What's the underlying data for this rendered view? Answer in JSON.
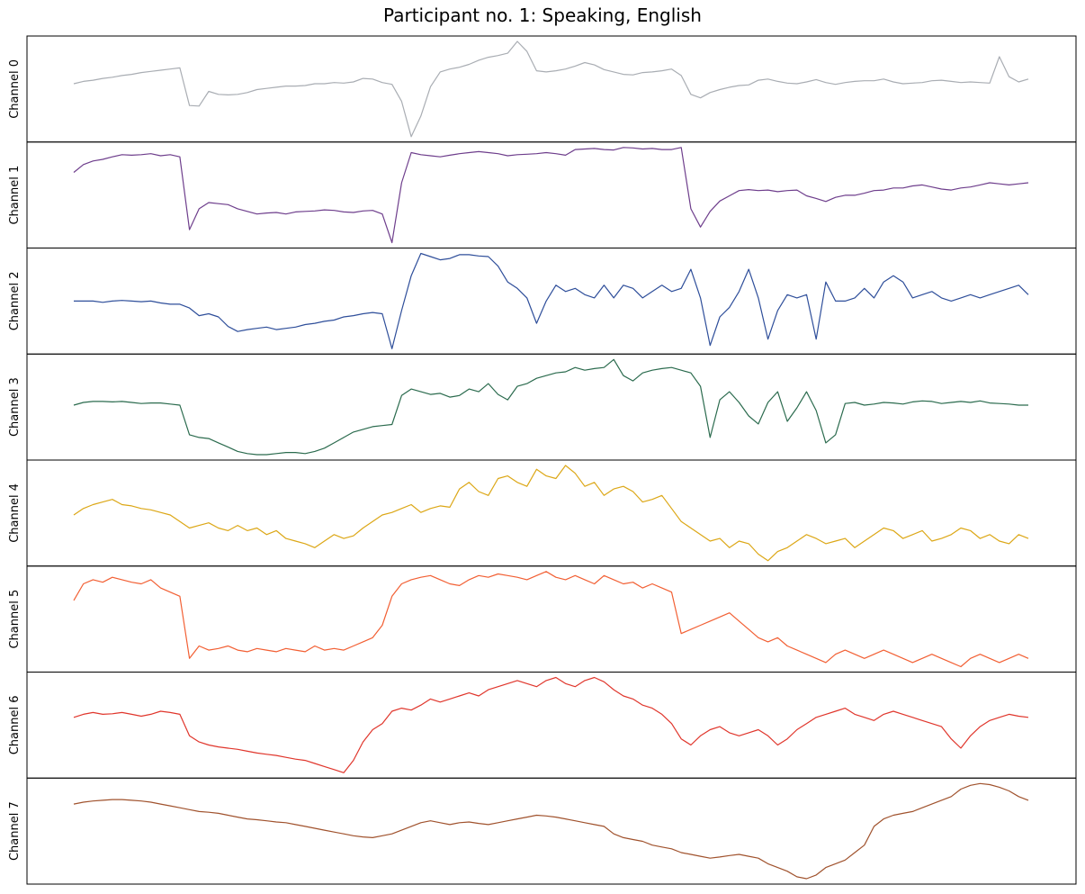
{
  "title": "Participant no. 1: Speaking, English",
  "chart_data": {
    "type": "line",
    "title": "Participant no. 1: Speaking, English",
    "xlabel": "",
    "ylabel": "",
    "x_ticks_shown": false,
    "y_ticks_shown": false,
    "grid": false,
    "legend": "none",
    "layout": "stacked-subplots",
    "series": [
      {
        "name": "Channel 0",
        "color": "#a9adb3",
        "values": [
          0.0,
          0.04,
          0.06,
          0.09,
          0.11,
          0.14,
          0.16,
          0.19,
          0.21,
          0.23,
          0.25,
          0.27,
          -0.37,
          -0.38,
          -0.13,
          -0.18,
          -0.19,
          -0.18,
          -0.15,
          -0.1,
          -0.08,
          -0.06,
          -0.04,
          -0.04,
          -0.03,
          0.0,
          0.0,
          0.02,
          0.01,
          0.03,
          0.09,
          0.08,
          0.02,
          -0.01,
          -0.3,
          -0.9,
          -0.55,
          -0.05,
          0.2,
          0.25,
          0.28,
          0.33,
          0.4,
          0.45,
          0.48,
          0.52,
          0.72,
          0.55,
          0.22,
          0.2,
          0.22,
          0.25,
          0.3,
          0.36,
          0.32,
          0.24,
          0.2,
          0.16,
          0.15,
          0.19,
          0.2,
          0.22,
          0.25,
          0.14,
          -0.18,
          -0.24,
          -0.15,
          -0.1,
          -0.06,
          -0.03,
          -0.02,
          0.06,
          0.08,
          0.04,
          0.01,
          0.0,
          0.03,
          0.07,
          0.02,
          -0.01,
          0.02,
          0.04,
          0.05,
          0.05,
          0.08,
          0.03,
          0.0,
          0.01,
          0.02,
          0.05,
          0.06,
          0.04,
          0.02,
          0.03,
          0.02,
          0.01,
          0.46,
          0.12,
          0.03,
          0.08
        ]
      },
      {
        "name": "Channel 1",
        "color": "#6e3e8c",
        "values": [
          0.4,
          0.55,
          0.62,
          0.65,
          0.7,
          0.74,
          0.73,
          0.74,
          0.76,
          0.72,
          0.74,
          0.7,
          -0.7,
          -0.3,
          -0.18,
          -0.2,
          -0.22,
          -0.3,
          -0.35,
          -0.4,
          -0.38,
          -0.37,
          -0.4,
          -0.36,
          -0.35,
          -0.34,
          -0.32,
          -0.33,
          -0.36,
          -0.37,
          -0.34,
          -0.33,
          -0.4,
          -0.95,
          0.2,
          0.78,
          0.74,
          0.72,
          0.7,
          0.73,
          0.76,
          0.78,
          0.8,
          0.78,
          0.76,
          0.72,
          0.74,
          0.75,
          0.76,
          0.78,
          0.76,
          0.73,
          0.84,
          0.85,
          0.86,
          0.84,
          0.83,
          0.88,
          0.87,
          0.85,
          0.86,
          0.84,
          0.84,
          0.88,
          -0.3,
          -0.65,
          -0.35,
          -0.15,
          -0.05,
          0.05,
          0.07,
          0.05,
          0.06,
          0.03,
          0.05,
          0.06,
          -0.05,
          -0.1,
          -0.16,
          -0.08,
          -0.04,
          -0.04,
          0.0,
          0.05,
          0.06,
          0.1,
          0.1,
          0.14,
          0.16,
          0.12,
          0.08,
          0.06,
          0.1,
          0.12,
          0.16,
          0.2,
          0.18,
          0.16,
          0.18,
          0.2
        ]
      },
      {
        "name": "Channel 2",
        "color": "#2e4e9a",
        "values": [
          0.05,
          0.05,
          0.05,
          0.03,
          0.05,
          0.06,
          0.05,
          0.04,
          0.05,
          0.02,
          0.0,
          0.0,
          -0.06,
          -0.18,
          -0.15,
          -0.2,
          -0.35,
          -0.43,
          -0.4,
          -0.38,
          -0.36,
          -0.4,
          -0.38,
          -0.36,
          -0.32,
          -0.3,
          -0.27,
          -0.25,
          -0.2,
          -0.18,
          -0.15,
          -0.13,
          -0.15,
          -0.7,
          -0.1,
          0.45,
          0.8,
          0.75,
          0.7,
          0.72,
          0.78,
          0.78,
          0.76,
          0.75,
          0.6,
          0.35,
          0.25,
          0.1,
          -0.3,
          0.05,
          0.3,
          0.2,
          0.25,
          0.15,
          0.1,
          0.3,
          0.1,
          0.3,
          0.25,
          0.1,
          0.2,
          0.3,
          0.2,
          0.25,
          0.55,
          0.1,
          -0.65,
          -0.2,
          -0.05,
          0.2,
          0.55,
          0.1,
          -0.55,
          -0.1,
          0.15,
          0.1,
          0.15,
          -0.55,
          0.35,
          0.05,
          0.05,
          0.1,
          0.25,
          0.1,
          0.35,
          0.45,
          0.35,
          0.1,
          0.15,
          0.2,
          0.1,
          0.05,
          0.1,
          0.15,
          0.1,
          0.15,
          0.2,
          0.25,
          0.3,
          0.15
        ]
      },
      {
        "name": "Channel 3",
        "color": "#2b6b4e",
        "values": [
          0.0,
          0.05,
          0.07,
          0.07,
          0.06,
          0.07,
          0.05,
          0.03,
          0.04,
          0.04,
          0.02,
          0.0,
          -0.55,
          -0.6,
          -0.62,
          -0.7,
          -0.78,
          -0.86,
          -0.9,
          -0.92,
          -0.92,
          -0.9,
          -0.88,
          -0.88,
          -0.9,
          -0.86,
          -0.8,
          -0.7,
          -0.6,
          -0.5,
          -0.45,
          -0.4,
          -0.38,
          -0.36,
          0.18,
          0.3,
          0.25,
          0.2,
          0.22,
          0.15,
          0.18,
          0.3,
          0.25,
          0.4,
          0.2,
          0.1,
          0.35,
          0.4,
          0.5,
          0.55,
          0.6,
          0.62,
          0.7,
          0.65,
          0.68,
          0.7,
          0.85,
          0.55,
          0.45,
          0.6,
          0.65,
          0.68,
          0.7,
          0.65,
          0.6,
          0.35,
          -0.6,
          0.1,
          0.25,
          0.05,
          -0.2,
          -0.35,
          0.05,
          0.25,
          -0.3,
          -0.05,
          0.25,
          -0.1,
          -0.7,
          -0.55,
          0.03,
          0.05,
          0.0,
          0.02,
          0.05,
          0.04,
          0.02,
          0.06,
          0.08,
          0.07,
          0.03,
          0.05,
          0.07,
          0.05,
          0.08,
          0.04,
          0.03,
          0.02,
          0.0,
          0.0
        ]
      },
      {
        "name": "Channel 4",
        "color": "#dca716",
        "values": [
          0.0,
          0.05,
          0.08,
          0.1,
          0.12,
          0.08,
          0.07,
          0.05,
          0.04,
          0.02,
          0.0,
          -0.05,
          -0.1,
          -0.08,
          -0.06,
          -0.1,
          -0.12,
          -0.08,
          -0.12,
          -0.1,
          -0.15,
          -0.12,
          -0.18,
          -0.2,
          -0.22,
          -0.25,
          -0.2,
          -0.15,
          -0.18,
          -0.16,
          -0.1,
          -0.05,
          0.0,
          0.02,
          0.05,
          0.08,
          0.02,
          0.05,
          0.07,
          0.06,
          0.2,
          0.25,
          0.18,
          0.15,
          0.28,
          0.3,
          0.25,
          0.22,
          0.35,
          0.3,
          0.28,
          0.38,
          0.32,
          0.22,
          0.25,
          0.15,
          0.2,
          0.22,
          0.18,
          0.1,
          0.12,
          0.15,
          0.05,
          -0.05,
          -0.1,
          -0.15,
          -0.2,
          -0.18,
          -0.25,
          -0.2,
          -0.22,
          -0.3,
          -0.35,
          -0.28,
          -0.25,
          -0.2,
          -0.15,
          -0.18,
          -0.22,
          -0.2,
          -0.18,
          -0.25,
          -0.2,
          -0.15,
          -0.1,
          -0.12,
          -0.18,
          -0.15,
          -0.12,
          -0.2,
          -0.18,
          -0.15,
          -0.1,
          -0.12,
          -0.18,
          -0.15,
          -0.2,
          -0.22,
          -0.15,
          -0.18
        ]
      },
      {
        "name": "Channel 5",
        "color": "#f25f33",
        "values": [
          0.0,
          0.2,
          0.25,
          0.22,
          0.28,
          0.25,
          0.22,
          0.2,
          0.25,
          0.15,
          0.1,
          0.05,
          -0.7,
          -0.55,
          -0.6,
          -0.58,
          -0.55,
          -0.6,
          -0.62,
          -0.58,
          -0.6,
          -0.62,
          -0.58,
          -0.6,
          -0.62,
          -0.55,
          -0.6,
          -0.58,
          -0.6,
          -0.55,
          -0.5,
          -0.45,
          -0.3,
          0.05,
          0.2,
          0.25,
          0.28,
          0.3,
          0.25,
          0.2,
          0.18,
          0.25,
          0.3,
          0.28,
          0.32,
          0.3,
          0.28,
          0.25,
          0.3,
          0.35,
          0.28,
          0.25,
          0.3,
          0.25,
          0.2,
          0.3,
          0.25,
          0.2,
          0.22,
          0.15,
          0.2,
          0.15,
          0.1,
          -0.4,
          -0.35,
          -0.3,
          -0.25,
          -0.2,
          -0.15,
          -0.25,
          -0.35,
          -0.45,
          -0.5,
          -0.45,
          -0.55,
          -0.6,
          -0.65,
          -0.7,
          -0.75,
          -0.65,
          -0.6,
          -0.65,
          -0.7,
          -0.65,
          -0.6,
          -0.65,
          -0.7,
          -0.75,
          -0.7,
          -0.65,
          -0.7,
          -0.75,
          -0.8,
          -0.7,
          -0.65,
          -0.7,
          -0.75,
          -0.7,
          -0.65,
          -0.7
        ]
      },
      {
        "name": "Channel 6",
        "color": "#e0362c",
        "values": [
          0.0,
          0.05,
          0.08,
          0.05,
          0.06,
          0.08,
          0.05,
          0.02,
          0.05,
          0.1,
          0.08,
          0.05,
          -0.3,
          -0.4,
          -0.45,
          -0.48,
          -0.5,
          -0.52,
          -0.55,
          -0.58,
          -0.6,
          -0.62,
          -0.65,
          -0.68,
          -0.7,
          -0.75,
          -0.8,
          -0.85,
          -0.9,
          -0.7,
          -0.4,
          -0.2,
          -0.1,
          0.1,
          0.15,
          0.12,
          0.2,
          0.3,
          0.25,
          0.3,
          0.35,
          0.4,
          0.35,
          0.45,
          0.5,
          0.55,
          0.6,
          0.55,
          0.5,
          0.6,
          0.65,
          0.55,
          0.5,
          0.6,
          0.65,
          0.58,
          0.45,
          0.35,
          0.3,
          0.2,
          0.15,
          0.05,
          -0.1,
          -0.35,
          -0.45,
          -0.3,
          -0.2,
          -0.15,
          -0.25,
          -0.3,
          -0.25,
          -0.2,
          -0.3,
          -0.45,
          -0.35,
          -0.2,
          -0.1,
          0.0,
          0.05,
          0.1,
          0.15,
          0.05,
          0.0,
          -0.05,
          0.05,
          0.1,
          0.05,
          0.0,
          -0.05,
          -0.1,
          -0.15,
          -0.35,
          -0.5,
          -0.3,
          -0.15,
          -0.05,
          0.0,
          0.05,
          0.02,
          0.0
        ]
      },
      {
        "name": "Channel 7",
        "color": "#a0522d",
        "values": [
          0.0,
          0.05,
          0.08,
          0.1,
          0.12,
          0.12,
          0.1,
          0.08,
          0.05,
          0.0,
          -0.05,
          -0.1,
          -0.15,
          -0.2,
          -0.22,
          -0.25,
          -0.3,
          -0.35,
          -0.4,
          -0.42,
          -0.45,
          -0.48,
          -0.5,
          -0.55,
          -0.6,
          -0.65,
          -0.7,
          -0.75,
          -0.8,
          -0.85,
          -0.88,
          -0.9,
          -0.85,
          -0.8,
          -0.7,
          -0.6,
          -0.5,
          -0.45,
          -0.5,
          -0.55,
          -0.5,
          -0.48,
          -0.52,
          -0.55,
          -0.5,
          -0.45,
          -0.4,
          -0.35,
          -0.3,
          -0.32,
          -0.35,
          -0.4,
          -0.45,
          -0.5,
          -0.55,
          -0.6,
          -0.8,
          -0.9,
          -0.95,
          -1.0,
          -1.1,
          -1.15,
          -1.2,
          -1.3,
          -1.35,
          -1.4,
          -1.45,
          -1.42,
          -1.38,
          -1.35,
          -1.4,
          -1.45,
          -1.6,
          -1.7,
          -1.8,
          -1.95,
          -2.0,
          -1.9,
          -1.7,
          -1.6,
          -1.5,
          -1.3,
          -1.1,
          -0.6,
          -0.4,
          -0.3,
          -0.25,
          -0.2,
          -0.1,
          0.0,
          0.1,
          0.2,
          0.4,
          0.5,
          0.55,
          0.52,
          0.45,
          0.35,
          0.2,
          0.1
        ]
      }
    ]
  }
}
